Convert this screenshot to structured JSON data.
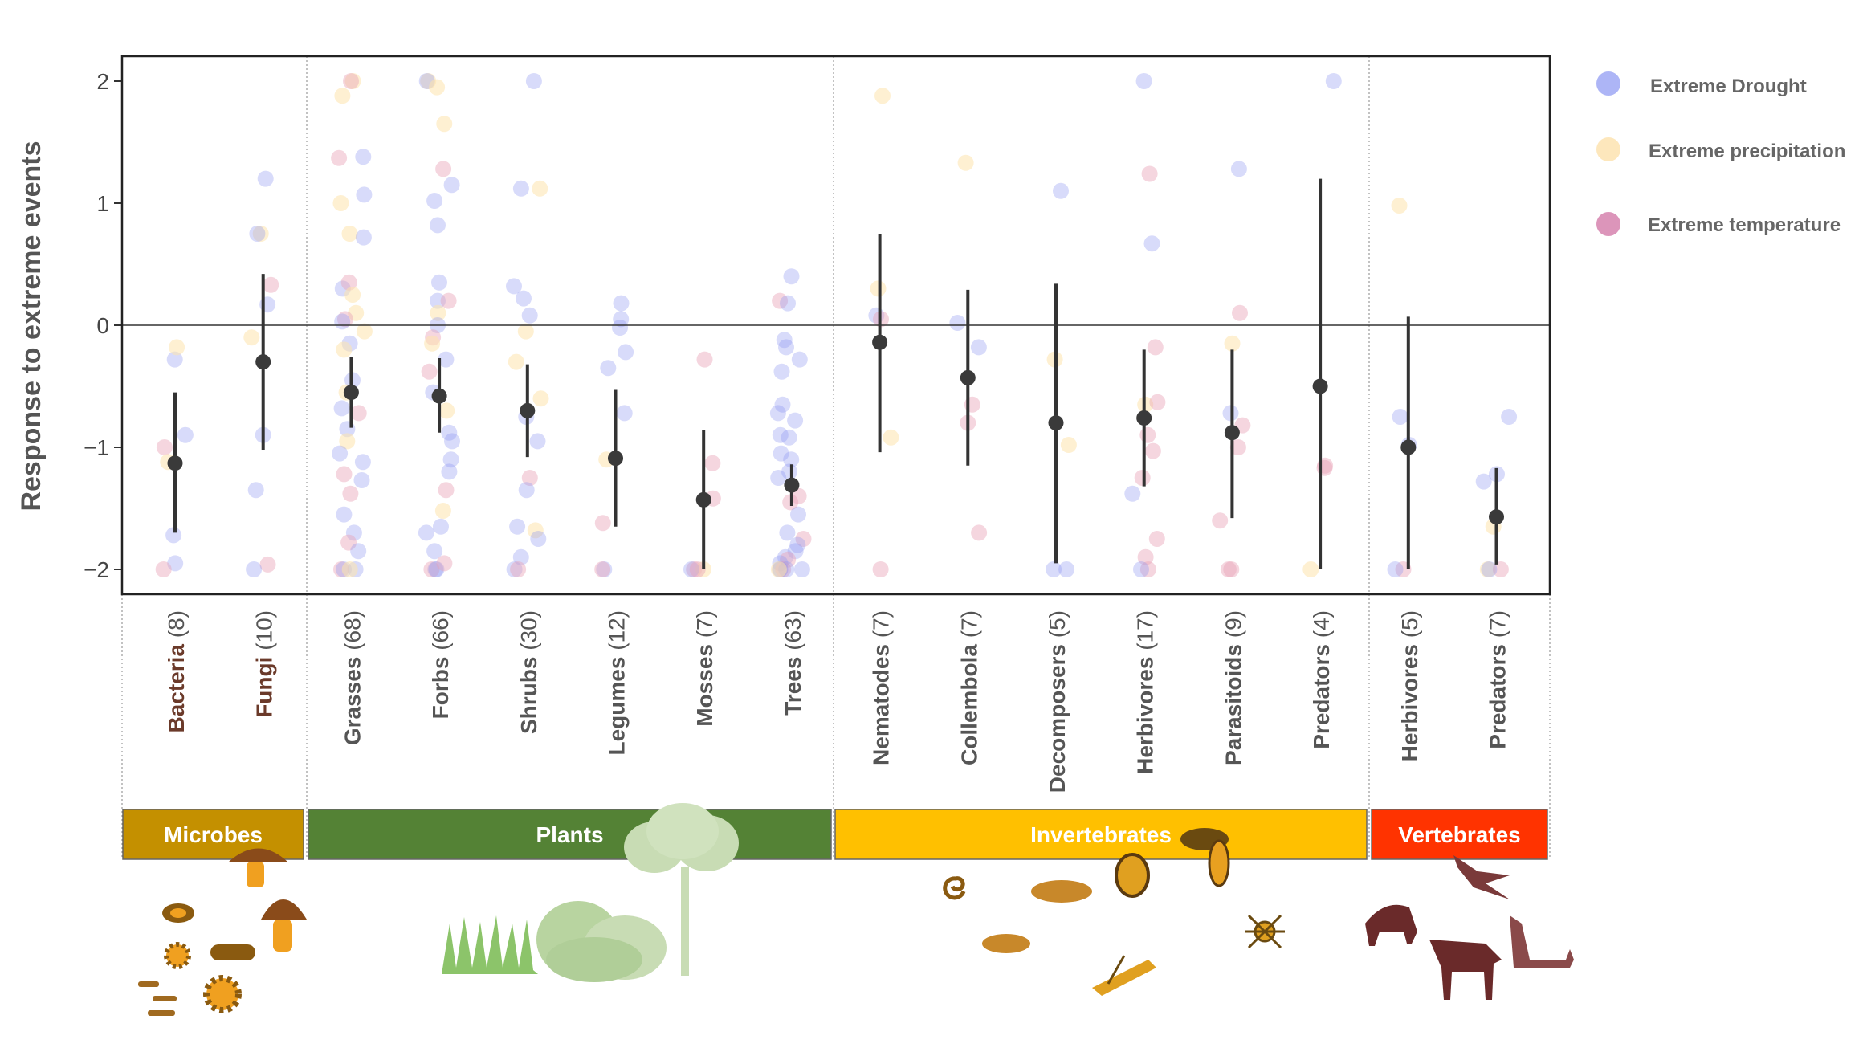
{
  "chart_data": {
    "type": "scatter",
    "ylabel": "Response to extreme events",
    "ylim": [
      -2.2,
      2.2
    ],
    "yticks": [
      2,
      1,
      0,
      -1,
      -2
    ],
    "ytick_labels": [
      "2",
      "1",
      "0",
      "−1",
      "−2"
    ],
    "legend": {
      "placement": "right",
      "items": [
        {
          "label": "Extreme Drought",
          "color": "#9fa8f5"
        },
        {
          "label": "Extreme precipitation",
          "color": "#fde6b8"
        },
        {
          "label": "Extreme temperature",
          "color": "#d889b3"
        }
      ]
    },
    "groups": [
      {
        "label": "Microbes",
        "color": "#c49000",
        "start": 0,
        "end": 1
      },
      {
        "label": "Plants",
        "color": "#548235",
        "start": 2,
        "end": 7
      },
      {
        "label": "Invertebrates",
        "color": "#ffc000",
        "start": 8,
        "end": 13
      },
      {
        "label": "Vertebrates",
        "color": "#ff3300",
        "start": 14,
        "end": 15
      }
    ],
    "categories": [
      {
        "label": "Bacteria",
        "n": "(8)",
        "color": "#6b3a2a",
        "mean": -1.13,
        "low": -1.7,
        "high": -0.55
      },
      {
        "label": "Fungi",
        "n": "(10)",
        "color": "#6b3a2a",
        "mean": -0.3,
        "low": -1.02,
        "high": 0.42
      },
      {
        "label": "Grasses",
        "n": "(68)",
        "color": "#555555",
        "mean": -0.55,
        "low": -0.84,
        "high": -0.26
      },
      {
        "label": "Forbs",
        "n": "(66)",
        "color": "#555555",
        "mean": -0.58,
        "low": -0.88,
        "high": -0.27
      },
      {
        "label": "Shrubs",
        "n": "(30)",
        "color": "#555555",
        "mean": -0.7,
        "low": -1.08,
        "high": -0.32
      },
      {
        "label": "Legumes",
        "n": "(12)",
        "color": "#555555",
        "mean": -1.09,
        "low": -1.65,
        "high": -0.53
      },
      {
        "label": "Mosses",
        "n": "(7)",
        "color": "#555555",
        "mean": -1.43,
        "low": -2.0,
        "high": -0.86
      },
      {
        "label": "Trees",
        "n": "(63)",
        "color": "#555555",
        "mean": -1.31,
        "low": -1.48,
        "high": -1.14
      },
      {
        "label": "Nematodes",
        "n": "(7)",
        "color": "#555555",
        "mean": -0.14,
        "low": -1.04,
        "high": 0.75
      },
      {
        "label": "Collembola",
        "n": "(7)",
        "color": "#555555",
        "mean": -0.43,
        "low": -1.15,
        "high": 0.29
      },
      {
        "label": "Decomposers",
        "n": "(5)",
        "color": "#555555",
        "mean": -0.8,
        "low": -1.95,
        "high": 0.34
      },
      {
        "label": "Herbivores",
        "n": "(17)",
        "color": "#555555",
        "mean": -0.76,
        "low": -1.32,
        "high": -0.2
      },
      {
        "label": "Parasitoids",
        "n": "(9)",
        "color": "#555555",
        "mean": -0.88,
        "low": -1.58,
        "high": -0.2
      },
      {
        "label": "Predators",
        "n": "(4)",
        "color": "#555555",
        "mean": -0.5,
        "low": -2.0,
        "high": 1.2
      },
      {
        "label": "Herbivores",
        "n": "(5)",
        "color": "#555555",
        "mean": -1.0,
        "low": -2.0,
        "high": 0.07
      },
      {
        "label": "Predators",
        "n": "(7)",
        "color": "#555555",
        "mean": -1.57,
        "low": -1.96,
        "high": -1.17
      }
    ],
    "points": [
      [
        [
          -0.28,
          "D"
        ],
        [
          -0.18,
          "P"
        ],
        [
          -1.0,
          "T"
        ],
        [
          -1.12,
          "P"
        ],
        [
          -1.72,
          "D"
        ],
        [
          -1.95,
          "D"
        ],
        [
          -2.0,
          "T"
        ],
        [
          -0.9,
          "D"
        ]
      ],
      [
        [
          1.2,
          "D"
        ],
        [
          0.75,
          "P"
        ],
        [
          0.75,
          "D"
        ],
        [
          0.33,
          "T"
        ],
        [
          0.17,
          "D"
        ],
        [
          -0.1,
          "P"
        ],
        [
          -0.9,
          "D"
        ],
        [
          -1.35,
          "D"
        ],
        [
          -1.96,
          "T"
        ],
        [
          -2.0,
          "D"
        ]
      ],
      [
        [
          2.0,
          "P"
        ],
        [
          2.0,
          "T"
        ],
        [
          1.88,
          "P"
        ],
        [
          1.37,
          "T"
        ],
        [
          1.38,
          "D"
        ],
        [
          1.07,
          "D"
        ],
        [
          1.0,
          "P"
        ],
        [
          0.75,
          "P"
        ],
        [
          0.72,
          "D"
        ],
        [
          0.3,
          "D"
        ],
        [
          0.35,
          "T"
        ],
        [
          0.25,
          "P"
        ],
        [
          0.1,
          "P"
        ],
        [
          0.05,
          "T"
        ],
        [
          0.03,
          "D"
        ],
        [
          -0.05,
          "P"
        ],
        [
          -0.15,
          "D"
        ],
        [
          -0.2,
          "P"
        ],
        [
          -0.45,
          "D"
        ],
        [
          -0.55,
          "P"
        ],
        [
          -0.68,
          "D"
        ],
        [
          -0.72,
          "T"
        ],
        [
          -0.85,
          "D"
        ],
        [
          -0.95,
          "P"
        ],
        [
          -1.05,
          "D"
        ],
        [
          -1.12,
          "D"
        ],
        [
          -1.22,
          "T"
        ],
        [
          -1.27,
          "D"
        ],
        [
          -1.38,
          "T"
        ],
        [
          -1.55,
          "D"
        ],
        [
          -1.7,
          "D"
        ],
        [
          -1.78,
          "T"
        ],
        [
          -1.85,
          "D"
        ],
        [
          -2.0,
          "D"
        ],
        [
          -2.0,
          "T"
        ],
        [
          -2.0,
          "D"
        ],
        [
          -2.0,
          "P"
        ]
      ],
      [
        [
          2.0,
          "P"
        ],
        [
          2.0,
          "D"
        ],
        [
          1.95,
          "P"
        ],
        [
          1.65,
          "P"
        ],
        [
          1.28,
          "T"
        ],
        [
          1.15,
          "D"
        ],
        [
          1.02,
          "D"
        ],
        [
          0.82,
          "D"
        ],
        [
          0.35,
          "D"
        ],
        [
          0.2,
          "D"
        ],
        [
          0.2,
          "T"
        ],
        [
          0.1,
          "P"
        ],
        [
          0.0,
          "D"
        ],
        [
          -0.1,
          "T"
        ],
        [
          -0.15,
          "P"
        ],
        [
          -0.28,
          "D"
        ],
        [
          -0.38,
          "T"
        ],
        [
          -0.55,
          "D"
        ],
        [
          -0.7,
          "P"
        ],
        [
          -0.88,
          "D"
        ],
        [
          -0.95,
          "D"
        ],
        [
          -1.1,
          "D"
        ],
        [
          -1.2,
          "D"
        ],
        [
          -1.35,
          "T"
        ],
        [
          -1.52,
          "P"
        ],
        [
          -1.65,
          "D"
        ],
        [
          -1.7,
          "D"
        ],
        [
          -1.85,
          "D"
        ],
        [
          -2.0,
          "D"
        ],
        [
          -2.0,
          "T"
        ],
        [
          -2.0,
          "D"
        ],
        [
          -1.95,
          "T"
        ]
      ],
      [
        [
          2.0,
          "D"
        ],
        [
          1.12,
          "D"
        ],
        [
          1.12,
          "P"
        ],
        [
          0.32,
          "D"
        ],
        [
          0.22,
          "D"
        ],
        [
          0.08,
          "D"
        ],
        [
          -0.05,
          "P"
        ],
        [
          -0.3,
          "P"
        ],
        [
          -0.6,
          "P"
        ],
        [
          -0.75,
          "D"
        ],
        [
          -0.95,
          "D"
        ],
        [
          -1.25,
          "T"
        ],
        [
          -1.35,
          "D"
        ],
        [
          -1.65,
          "D"
        ],
        [
          -1.68,
          "P"
        ],
        [
          -1.75,
          "D"
        ],
        [
          -1.9,
          "D"
        ],
        [
          -2.0,
          "D"
        ],
        [
          -2.0,
          "T"
        ]
      ],
      [
        [
          0.18,
          "D"
        ],
        [
          0.05,
          "D"
        ],
        [
          -0.02,
          "D"
        ],
        [
          -0.22,
          "D"
        ],
        [
          -0.35,
          "D"
        ],
        [
          -0.72,
          "D"
        ],
        [
          -1.1,
          "P"
        ],
        [
          -1.62,
          "T"
        ],
        [
          -2.0,
          "D"
        ],
        [
          -2.0,
          "T"
        ]
      ],
      [
        [
          -0.28,
          "T"
        ],
        [
          -1.13,
          "T"
        ],
        [
          -1.42,
          "T"
        ],
        [
          -2.0,
          "T"
        ],
        [
          -2.0,
          "P"
        ],
        [
          -2.0,
          "D"
        ],
        [
          -2.0,
          "T"
        ]
      ],
      [
        [
          0.4,
          "D"
        ],
        [
          0.2,
          "T"
        ],
        [
          0.18,
          "D"
        ],
        [
          -0.12,
          "D"
        ],
        [
          -0.18,
          "D"
        ],
        [
          -0.28,
          "D"
        ],
        [
          -0.38,
          "D"
        ],
        [
          -0.65,
          "D"
        ],
        [
          -0.72,
          "D"
        ],
        [
          -0.78,
          "D"
        ],
        [
          -0.9,
          "D"
        ],
        [
          -0.92,
          "D"
        ],
        [
          -1.05,
          "D"
        ],
        [
          -1.1,
          "D"
        ],
        [
          -1.2,
          "D"
        ],
        [
          -1.25,
          "D"
        ],
        [
          -1.4,
          "T"
        ],
        [
          -1.45,
          "T"
        ],
        [
          -1.55,
          "D"
        ],
        [
          -1.7,
          "D"
        ],
        [
          -1.75,
          "T"
        ],
        [
          -1.8,
          "D"
        ],
        [
          -1.85,
          "D"
        ],
        [
          -1.9,
          "D"
        ],
        [
          -1.92,
          "T"
        ],
        [
          -1.95,
          "D"
        ],
        [
          -2.0,
          "D"
        ],
        [
          -2.0,
          "D"
        ],
        [
          -2.0,
          "D"
        ],
        [
          -2.0,
          "T"
        ],
        [
          -2.0,
          "D"
        ],
        [
          -2.0,
          "P"
        ]
      ],
      [
        [
          1.88,
          "P"
        ],
        [
          0.3,
          "P"
        ],
        [
          0.08,
          "D"
        ],
        [
          0.05,
          "T"
        ],
        [
          -0.92,
          "P"
        ],
        [
          -2.0,
          "T"
        ]
      ],
      [
        [
          1.33,
          "P"
        ],
        [
          0.02,
          "D"
        ],
        [
          -0.18,
          "D"
        ],
        [
          -0.65,
          "T"
        ],
        [
          -0.8,
          "T"
        ],
        [
          -1.7,
          "T"
        ]
      ],
      [
        [
          1.1,
          "D"
        ],
        [
          -0.28,
          "P"
        ],
        [
          -0.98,
          "P"
        ],
        [
          -2.0,
          "D"
        ],
        [
          -2.0,
          "D"
        ]
      ],
      [
        [
          2.0,
          "D"
        ],
        [
          1.24,
          "T"
        ],
        [
          0.67,
          "D"
        ],
        [
          -0.18,
          "T"
        ],
        [
          -0.65,
          "P"
        ],
        [
          -0.63,
          "T"
        ],
        [
          -0.9,
          "T"
        ],
        [
          -1.03,
          "T"
        ],
        [
          -1.25,
          "T"
        ],
        [
          -1.38,
          "D"
        ],
        [
          -1.75,
          "T"
        ],
        [
          -1.9,
          "T"
        ],
        [
          -2.0,
          "T"
        ],
        [
          -2.0,
          "D"
        ]
      ],
      [
        [
          1.28,
          "D"
        ],
        [
          0.1,
          "T"
        ],
        [
          -0.15,
          "P"
        ],
        [
          -0.72,
          "D"
        ],
        [
          -0.82,
          "T"
        ],
        [
          -1.0,
          "T"
        ],
        [
          -1.6,
          "T"
        ],
        [
          -2.0,
          "T"
        ],
        [
          -2.0,
          "T"
        ]
      ],
      [
        [
          2.0,
          "D"
        ],
        [
          -1.17,
          "T"
        ],
        [
          -2.0,
          "P"
        ],
        [
          -1.15,
          "T"
        ]
      ],
      [
        [
          0.98,
          "P"
        ],
        [
          -0.75,
          "D"
        ],
        [
          -0.98,
          "D"
        ],
        [
          -2.0,
          "T"
        ],
        [
          -2.0,
          "D"
        ]
      ],
      [
        [
          -0.75,
          "D"
        ],
        [
          -1.22,
          "D"
        ],
        [
          -1.28,
          "D"
        ],
        [
          -1.65,
          "P"
        ],
        [
          -2.0,
          "P"
        ],
        [
          -2.0,
          "T"
        ],
        [
          -2.0,
          "D"
        ]
      ]
    ]
  }
}
